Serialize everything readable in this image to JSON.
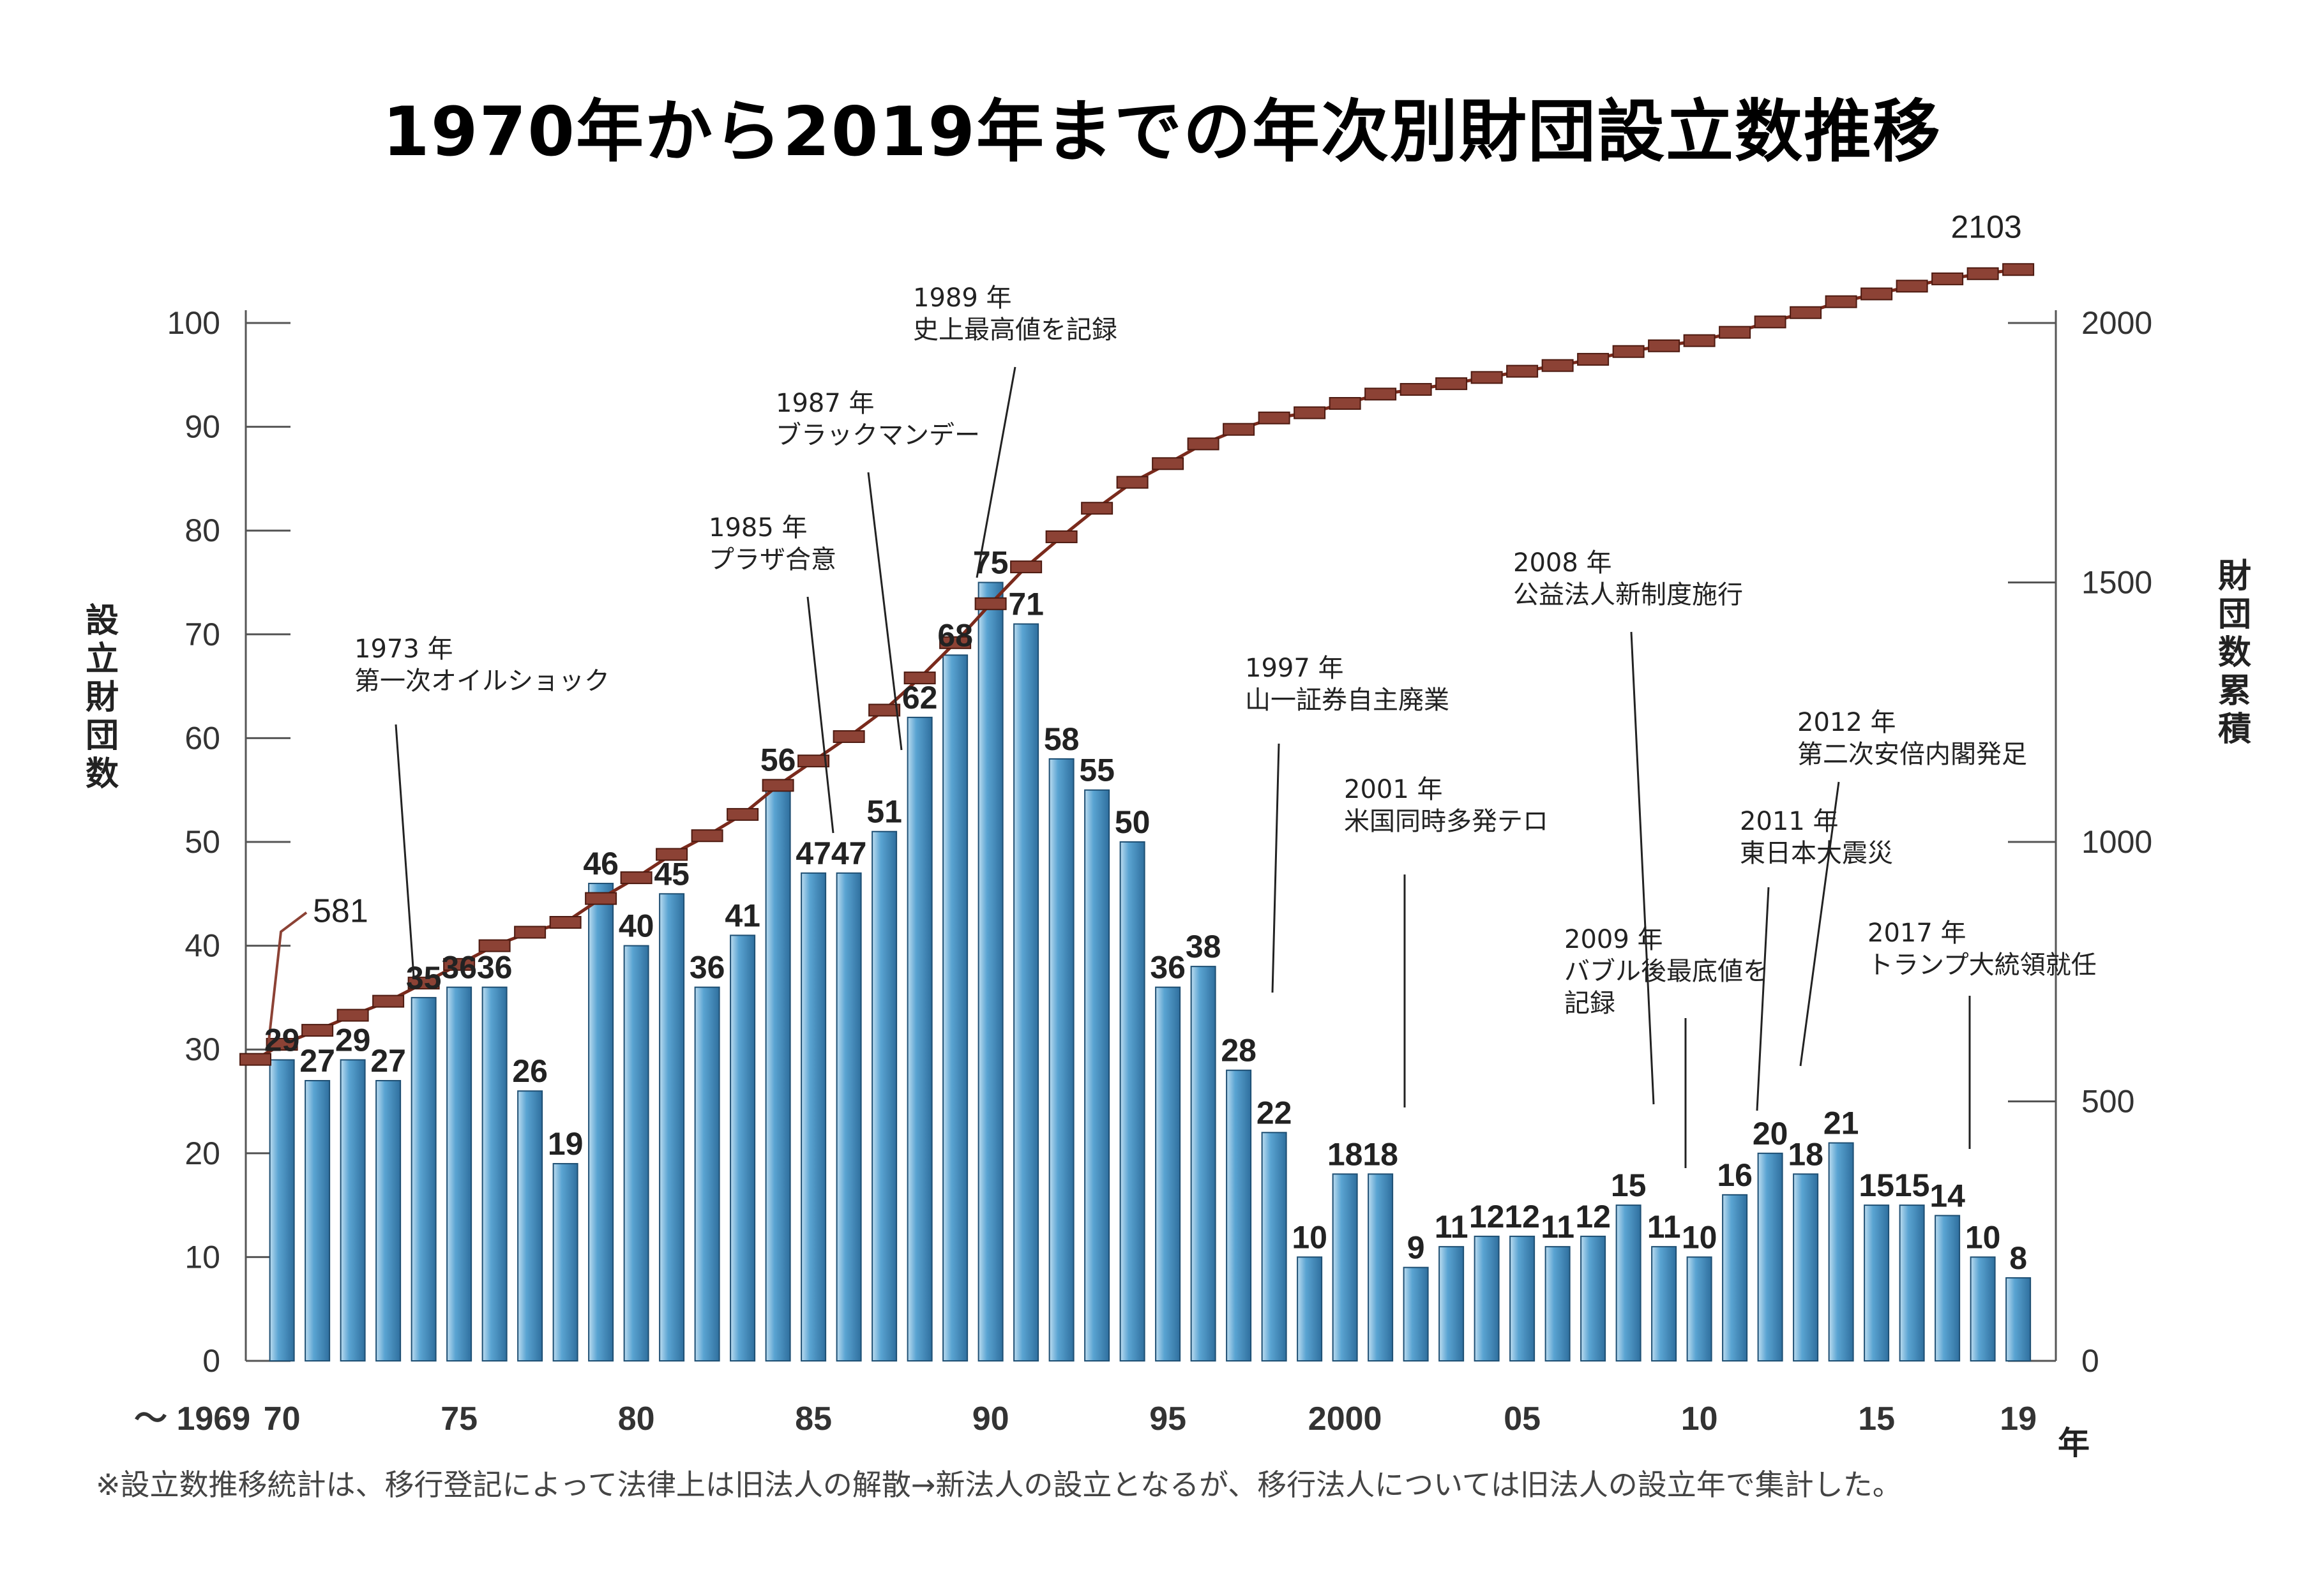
{
  "title": "1970年から2019年までの年次別財団設立数推移",
  "footnote": "※設立数推移統計は、移行登記によって法律上は旧法人の解散→新法人の設立となるが、移行法人については旧法人の設立年で集計した。",
  "colors": {
    "bar": "#3f8cc1",
    "bar_light": "#bcdcf0",
    "line": "#7a2a1c",
    "marker": "#8c4235",
    "text": "#222222"
  },
  "chart_data": {
    "type": "bar",
    "title": "1970年から2019年までの年次別財団設立数推移",
    "ylabel": "設立財団数",
    "y2label": "財団数累積",
    "xlabel": "年",
    "ylim": [
      0,
      100
    ],
    "y2lim": [
      0,
      2000
    ],
    "yticks": [
      "0",
      "10",
      "20",
      "30",
      "40",
      "50",
      "60",
      "70",
      "80",
      "90",
      "100"
    ],
    "y2ticks": [
      "0",
      "500",
      "1000",
      "1500",
      "2000"
    ],
    "x_start_label": "～ 1969",
    "xtick_labels": [
      {
        "year": 1970,
        "label": "70"
      },
      {
        "year": 1975,
        "label": "75"
      },
      {
        "year": 1980,
        "label": "80"
      },
      {
        "year": 1985,
        "label": "85"
      },
      {
        "year": 1990,
        "label": "90"
      },
      {
        "year": 1995,
        "label": "95"
      },
      {
        "year": 2000,
        "label": "2000"
      },
      {
        "year": 2005,
        "label": "05"
      },
      {
        "year": 2010,
        "label": "10"
      },
      {
        "year": 2015,
        "label": "15"
      },
      {
        "year": 2019,
        "label": "19"
      }
    ],
    "years": [
      1970,
      1971,
      1972,
      1973,
      1974,
      1975,
      1976,
      1977,
      1978,
      1979,
      1980,
      1981,
      1982,
      1983,
      1984,
      1985,
      1986,
      1987,
      1988,
      1989,
      1990,
      1991,
      1992,
      1993,
      1994,
      1995,
      1996,
      1997,
      1998,
      1999,
      2000,
      2001,
      2002,
      2003,
      2004,
      2005,
      2006,
      2007,
      2008,
      2009,
      2010,
      2011,
      2012,
      2013,
      2014,
      2015,
      2016,
      2017,
      2018,
      2019
    ],
    "series": [
      {
        "name": "設立財団数",
        "type": "bar",
        "values": [
          29,
          27,
          29,
          27,
          35,
          36,
          36,
          26,
          19,
          46,
          40,
          45,
          36,
          41,
          56,
          47,
          47,
          51,
          62,
          68,
          75,
          71,
          58,
          55,
          50,
          36,
          38,
          28,
          22,
          10,
          18,
          18,
          9,
          11,
          12,
          12,
          11,
          12,
          15,
          11,
          10,
          16,
          20,
          18,
          21,
          15,
          15,
          14,
          10,
          8
        ]
      },
      {
        "name": "財団数累積",
        "type": "line",
        "start": {
          "label": "～1969",
          "value": 581
        },
        "values": [
          610,
          637,
          666,
          693,
          728,
          764,
          800,
          826,
          845,
          891,
          931,
          976,
          1012,
          1053,
          1109,
          1156,
          1203,
          1254,
          1316,
          1384,
          1459,
          1530,
          1588,
          1643,
          1693,
          1729,
          1767,
          1795,
          1817,
          1827,
          1845,
          1863,
          1872,
          1883,
          1895,
          1907,
          1918,
          1930,
          1945,
          1956,
          1966,
          1982,
          2002,
          2020,
          2041,
          2056,
          2071,
          2085,
          2095,
          2103
        ]
      }
    ],
    "point_labels": [
      {
        "text": "581",
        "value": 581
      },
      {
        "text": "2103",
        "value": 2103
      }
    ],
    "annotations": [
      {
        "year_text": "1973 年",
        "event": "第一次オイルショック",
        "year": 1973
      },
      {
        "year_text": "1985 年",
        "event": "プラザ合意",
        "year": 1985
      },
      {
        "year_text": "1987 年",
        "event": "ブラックマンデー",
        "year": 1987
      },
      {
        "year_text": "1989 年",
        "event": "史上最高値を記録",
        "year": 1989
      },
      {
        "year_text": "1997 年",
        "event": "山一証券自主廃業",
        "year": 1997
      },
      {
        "year_text": "2001 年",
        "event": "米国同時多発テロ",
        "year": 2001
      },
      {
        "year_text": "2008 年",
        "event": "公益法人新制度施行",
        "year": 2008
      },
      {
        "year_text": "2009 年",
        "event": "バブル後最底値を",
        "event2": "記録",
        "year": 2009
      },
      {
        "year_text": "2011 年",
        "event": "東日本大震災",
        "year": 2011
      },
      {
        "year_text": "2012 年",
        "event": "第二次安倍内閣発足",
        "year": 2012
      },
      {
        "year_text": "2017 年",
        "event": "トランプ大統領就任",
        "year": 2017
      }
    ]
  }
}
